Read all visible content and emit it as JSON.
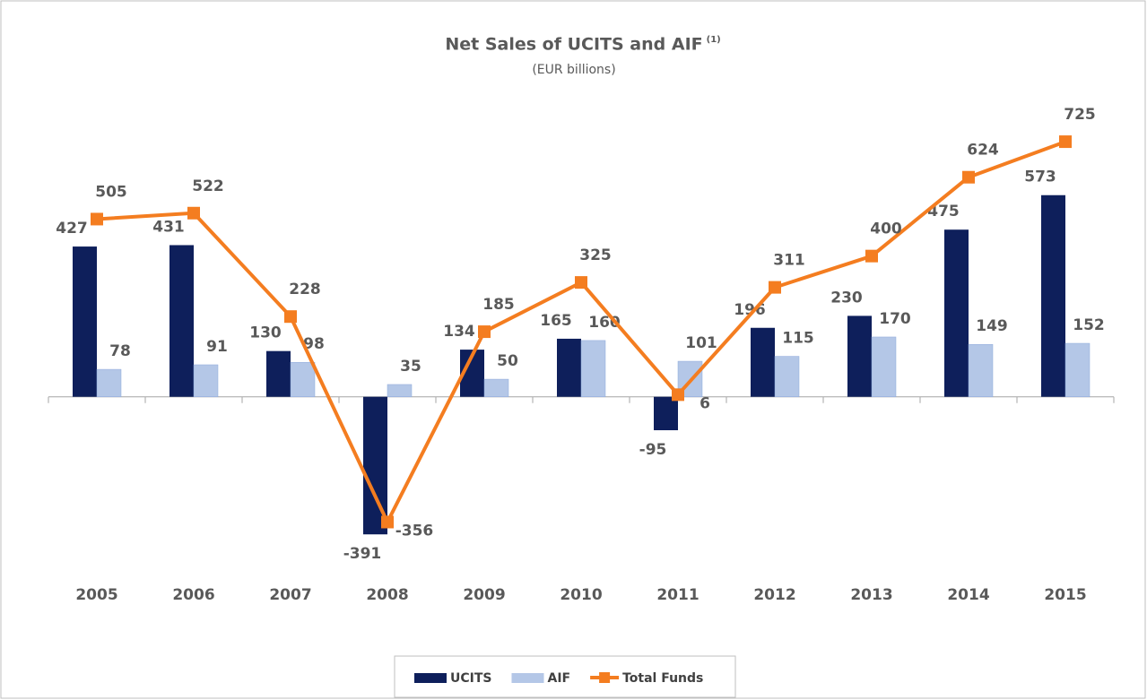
{
  "chart_data": {
    "type": "bar",
    "title": "Net Sales of UCITS and AIF",
    "title_superscript": "(1)",
    "subtitle": "(EUR billions)",
    "categories": [
      "2005",
      "2006",
      "2007",
      "2008",
      "2009",
      "2010",
      "2011",
      "2012",
      "2013",
      "2014",
      "2015"
    ],
    "series": [
      {
        "name": "UCITS",
        "type": "bar",
        "color": "#0e1f5b",
        "values": [
          427,
          431,
          130,
          -391,
          134,
          165,
          -95,
          196,
          230,
          475,
          573
        ]
      },
      {
        "name": "AIF",
        "type": "bar",
        "color": "#b4c7e7",
        "values": [
          78,
          91,
          98,
          35,
          50,
          160,
          101,
          115,
          170,
          149,
          152
        ]
      },
      {
        "name": "Total Funds",
        "type": "line",
        "color": "#f47d20",
        "values": [
          505,
          522,
          228,
          -356,
          185,
          325,
          6,
          311,
          400,
          624,
          725
        ]
      }
    ],
    "ylim": [
      -500,
      850
    ],
    "legend": "bottom"
  }
}
